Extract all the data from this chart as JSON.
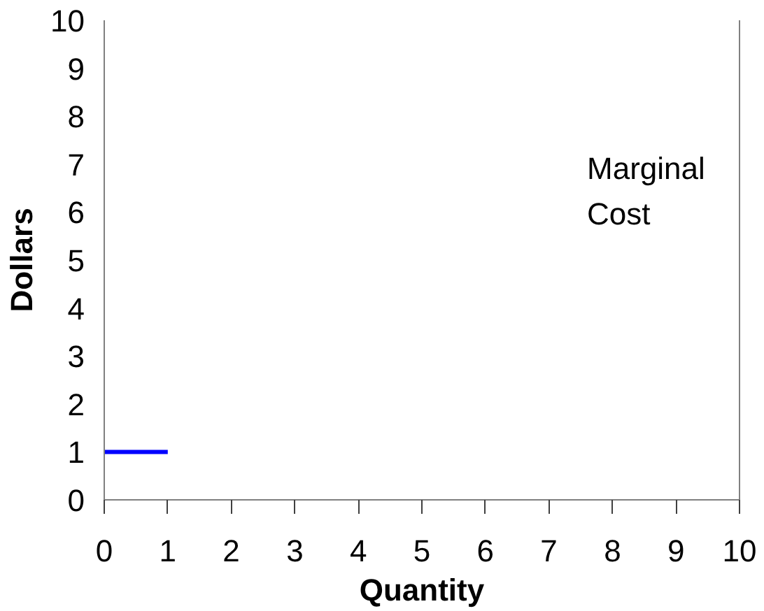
{
  "chart_data": {
    "type": "line",
    "xlabel": "Quantity",
    "ylabel": "Dollars",
    "x": [
      0,
      1
    ],
    "series": [
      {
        "color": "#0000ff",
        "values": [
          1,
          1
        ]
      }
    ],
    "xlim": [
      0,
      10
    ],
    "ylim": [
      0,
      10
    ],
    "xticks": [
      0,
      1,
      2,
      3,
      4,
      5,
      6,
      7,
      8,
      9,
      10
    ],
    "yticks": [
      0,
      1,
      2,
      3,
      4,
      5,
      6,
      7,
      8,
      9,
      10
    ],
    "annotations": [
      "Marginal\nCost"
    ],
    "grid": false
  }
}
